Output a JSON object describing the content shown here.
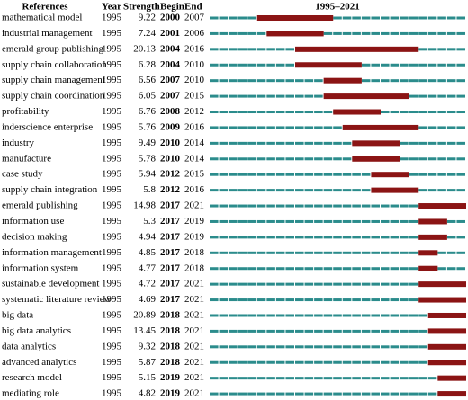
{
  "header": {
    "reference": "References",
    "year": "Year",
    "strength": "Strength",
    "begin": "Begin",
    "end": "End",
    "timeline": "1995–2021"
  },
  "xlim": [
    1995,
    2021
  ],
  "rows": [
    {
      "reference": "mathematical model",
      "year": 1995,
      "strength": 9.22,
      "begin": 2000,
      "end": 2007
    },
    {
      "reference": "industrial management",
      "year": 1995,
      "strength": 7.24,
      "begin": 2001,
      "end": 2006
    },
    {
      "reference": "emerald group publishing",
      "year": 1995,
      "strength": 20.13,
      "begin": 2004,
      "end": 2016
    },
    {
      "reference": "supply chain collaboration",
      "year": 1995,
      "strength": 6.28,
      "begin": 2004,
      "end": 2010
    },
    {
      "reference": "supply chain management",
      "year": 1995,
      "strength": 6.56,
      "begin": 2007,
      "end": 2010
    },
    {
      "reference": "supply chain coordination",
      "year": 1995,
      "strength": 6.05,
      "begin": 2007,
      "end": 2015
    },
    {
      "reference": "profitability",
      "year": 1995,
      "strength": 6.76,
      "begin": 2008,
      "end": 2012
    },
    {
      "reference": "inderscience enterprise",
      "year": 1995,
      "strength": 5.76,
      "begin": 2009,
      "end": 2016
    },
    {
      "reference": "industry",
      "year": 1995,
      "strength": 9.49,
      "begin": 2010,
      "end": 2014
    },
    {
      "reference": "manufacture",
      "year": 1995,
      "strength": 5.78,
      "begin": 2010,
      "end": 2014
    },
    {
      "reference": "case study",
      "year": 1995,
      "strength": 5.94,
      "begin": 2012,
      "end": 2015
    },
    {
      "reference": "supply chain integration",
      "year": 1995,
      "strength": 5.8,
      "begin": 2012,
      "end": 2016
    },
    {
      "reference": "emerald publishing",
      "year": 1995,
      "strength": 14.98,
      "begin": 2017,
      "end": 2021
    },
    {
      "reference": "information use",
      "year": 1995,
      "strength": 5.3,
      "begin": 2017,
      "end": 2019
    },
    {
      "reference": "decision making",
      "year": 1995,
      "strength": 4.94,
      "begin": 2017,
      "end": 2019
    },
    {
      "reference": "information management",
      "year": 1995,
      "strength": 4.85,
      "begin": 2017,
      "end": 2018
    },
    {
      "reference": "information system",
      "year": 1995,
      "strength": 4.77,
      "begin": 2017,
      "end": 2018
    },
    {
      "reference": "sustainable development",
      "year": 1995,
      "strength": 4.72,
      "begin": 2017,
      "end": 2021
    },
    {
      "reference": "systematic literature review",
      "year": 1995,
      "strength": 4.69,
      "begin": 2017,
      "end": 2021
    },
    {
      "reference": "big data",
      "year": 1995,
      "strength": 20.89,
      "begin": 2018,
      "end": 2021
    },
    {
      "reference": "big data analytics",
      "year": 1995,
      "strength": 13.45,
      "begin": 2018,
      "end": 2021
    },
    {
      "reference": "data analytics",
      "year": 1995,
      "strength": 9.32,
      "begin": 2018,
      "end": 2021
    },
    {
      "reference": "advanced analytics",
      "year": 1995,
      "strength": 5.87,
      "begin": 2018,
      "end": 2021
    },
    {
      "reference": "research model",
      "year": 1995,
      "strength": 5.15,
      "begin": 2019,
      "end": 2021
    },
    {
      "reference": "mediating role",
      "year": 1995,
      "strength": 4.82,
      "begin": 2019,
      "end": 2021
    }
  ]
}
